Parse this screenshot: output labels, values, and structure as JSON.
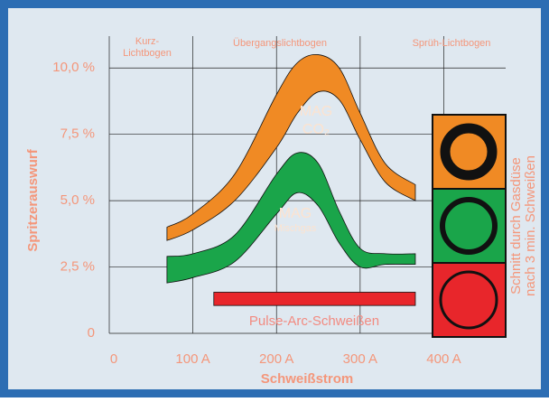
{
  "chart_data": {
    "type": "band",
    "xlabel": "Schweißstrom",
    "ylabel": "Spritzerauswurf",
    "xlim": [
      0,
      474
    ],
    "ylim": [
      0,
      11.2
    ],
    "xticks": [
      0,
      {
        "value": 100,
        "label": "100 A"
      },
      {
        "value": 200,
        "label": "200 A"
      },
      {
        "value": 300,
        "label": "300 A"
      },
      {
        "value": 400,
        "label": "400 A"
      }
    ],
    "yticks": [
      0,
      {
        "value": 2.5,
        "label": "2,5 %"
      },
      {
        "value": 5,
        "label": "5,0 %"
      },
      {
        "value": 7.5,
        "label": "7,5 %"
      },
      {
        "value": 10,
        "label": "10,0 %"
      }
    ],
    "grid": true,
    "regions": [
      "Kurz-\nLichtbogen",
      "Übergangslichtbogen",
      "Sprüh-Lichtbogen"
    ],
    "series": [
      {
        "name": "MAG",
        "subname": "CO₂",
        "color": "#f08a24",
        "x": [
          69,
          100,
          150,
          200,
          225,
          250,
          275,
          300,
          330,
          366
        ],
        "upper": [
          4.0,
          4.5,
          6.0,
          9.0,
          10.2,
          10.5,
          10.0,
          8.3,
          6.4,
          5.6
        ],
        "lower": [
          3.5,
          3.9,
          5.0,
          7.0,
          8.3,
          9.1,
          8.8,
          7.3,
          5.7,
          5.0
        ]
      },
      {
        "name": "MAG",
        "subname": "Mischgas",
        "color": "#1aa54a",
        "x": [
          69,
          100,
          150,
          200,
          225,
          250,
          275,
          300,
          330,
          366
        ],
        "upper": [
          2.9,
          3.0,
          3.7,
          6.0,
          6.8,
          6.4,
          4.6,
          3.2,
          3.0,
          3.0
        ],
        "lower": [
          1.9,
          2.1,
          2.7,
          4.5,
          5.3,
          4.8,
          3.4,
          2.5,
          2.6,
          2.6
        ]
      }
    ],
    "bar": {
      "name": "Pulse-Arc-Schweißen",
      "color": "#e8262b",
      "x": [
        125,
        366
      ],
      "lower": 1.05,
      "upper": 1.55
    },
    "panel_text": [
      "Schnitt durch Gasdüse",
      "nach 3 min. Schweißen"
    ]
  }
}
